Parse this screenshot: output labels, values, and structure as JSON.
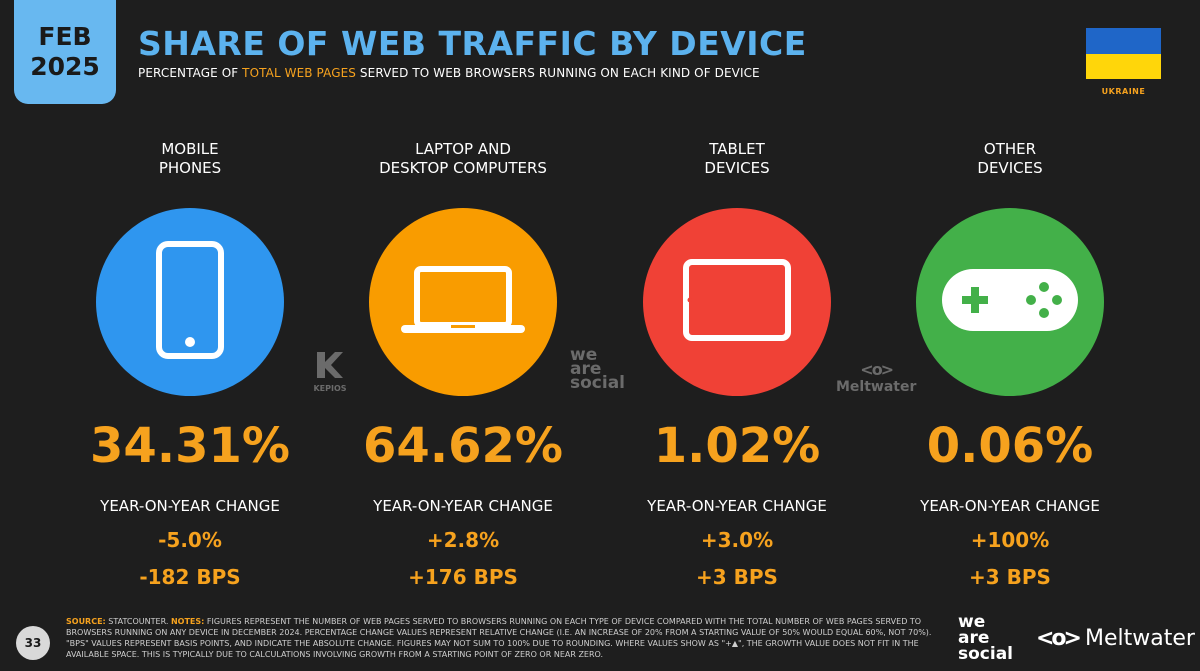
{
  "header": {
    "date_month": "FEB",
    "date_year": "2025",
    "title": "SHARE OF WEB TRAFFIC BY DEVICE",
    "subtitle_pre": "PERCENTAGE OF ",
    "subtitle_highlight": "TOTAL WEB PAGES",
    "subtitle_post": " SERVED TO WEB BROWSERS RUNNING ON EACH KIND OF DEVICE",
    "country": "UKRAINE"
  },
  "colors": {
    "accent": "#f6a21e",
    "title": "#5cb2ee",
    "mobile": "#2f96ef",
    "desktop": "#f99c00",
    "tablet": "#f04136",
    "other": "#43b049"
  },
  "chart_data": {
    "type": "table",
    "categories": [
      "MOBILE\nPHONES",
      "LAPTOP AND\nDESKTOP COMPUTERS",
      "TABLET\nDEVICES",
      "OTHER\nDEVICES"
    ],
    "values": [
      34.31,
      64.62,
      1.02,
      0.06
    ],
    "value_labels": [
      "34.31%",
      "64.62%",
      "1.02%",
      "0.06%"
    ],
    "yoy_label": "YEAR-ON-YEAR CHANGE",
    "yoy_pct": [
      "-5.0%",
      "+2.8%",
      "+3.0%",
      "+100%"
    ],
    "yoy_bps": [
      "-182 BPS",
      "+176 BPS",
      "+3 BPS",
      "+3 BPS"
    ],
    "icons": [
      "mobile-phone-icon",
      "laptop-icon",
      "tablet-icon",
      "gamepad-icon"
    ]
  },
  "watermarks": {
    "kepios": "KEPIOS",
    "wearesocial": "we\nare\nsocial",
    "meltwater": "Meltwater"
  },
  "footer": {
    "page_number": "33",
    "source_label": "SOURCE:",
    "source_text": " STATCOUNTER. ",
    "notes_label": "NOTES:",
    "notes_text": " FIGURES REPRESENT THE NUMBER OF WEB PAGES SERVED TO BROWSERS RUNNING ON EACH TYPE OF DEVICE COMPARED WITH THE TOTAL NUMBER OF WEB PAGES SERVED TO BROWSERS RUNNING ON ANY DEVICE IN DECEMBER 2024. PERCENTAGE CHANGE VALUES REPRESENT RELATIVE CHANGE (I.E. AN INCREASE OF 20% FROM A STARTING VALUE OF 50% WOULD EQUAL 60%, NOT 70%). \"BPS\" VALUES REPRESENT BASIS POINTS, AND INDICATE THE ABSOLUTE CHANGE. FIGURES MAY NOT SUM TO 100% DUE TO ROUNDING. WHERE VALUES SHOW AS \"+▲\", THE GROWTH VALUE DOES NOT FIT IN THE AVAILABLE SPACE. THIS IS TYPICALLY DUE TO CALCULATIONS INVOLVING GROWTH FROM A STARTING POINT OF ZERO OR NEAR ZERO.",
    "logo_ws": "we\nare\nsocial",
    "logo_mw": "Meltwater"
  }
}
